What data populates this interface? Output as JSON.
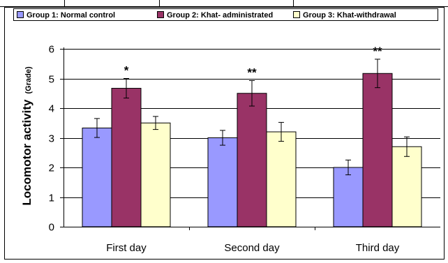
{
  "chart_data": {
    "type": "bar",
    "categories": [
      "First day",
      "Second day",
      "Third day"
    ],
    "series": [
      {
        "name": "Group 1: Normal control",
        "color": "#9999ff",
        "values": [
          3.33,
          3.0,
          2.0
        ],
        "errors": [
          0.32,
          0.25,
          0.25
        ]
      },
      {
        "name": "Group 2: Khat- administrated",
        "color": "#993366",
        "values": [
          4.67,
          4.5,
          5.17
        ],
        "errors": [
          0.33,
          0.43,
          0.48
        ]
      },
      {
        "name": "Group 3: Khat-withdrawal",
        "color": "#ffffcc",
        "values": [
          3.5,
          3.2,
          2.7
        ],
        "errors": [
          0.22,
          0.32,
          0.33
        ]
      }
    ],
    "annotations": [
      {
        "category": "First day",
        "series": 1,
        "text": "*"
      },
      {
        "category": "Second day",
        "series": 1,
        "text": "**"
      },
      {
        "category": "Third day",
        "series": 1,
        "text": "**"
      }
    ],
    "ylabel": "Locomotor activity",
    "ylabel_unit": "(Grade)",
    "ylim": [
      0,
      6
    ],
    "yticks": [
      0,
      1,
      2,
      3,
      4,
      5,
      6
    ],
    "grid": true,
    "legend_position": "top"
  }
}
